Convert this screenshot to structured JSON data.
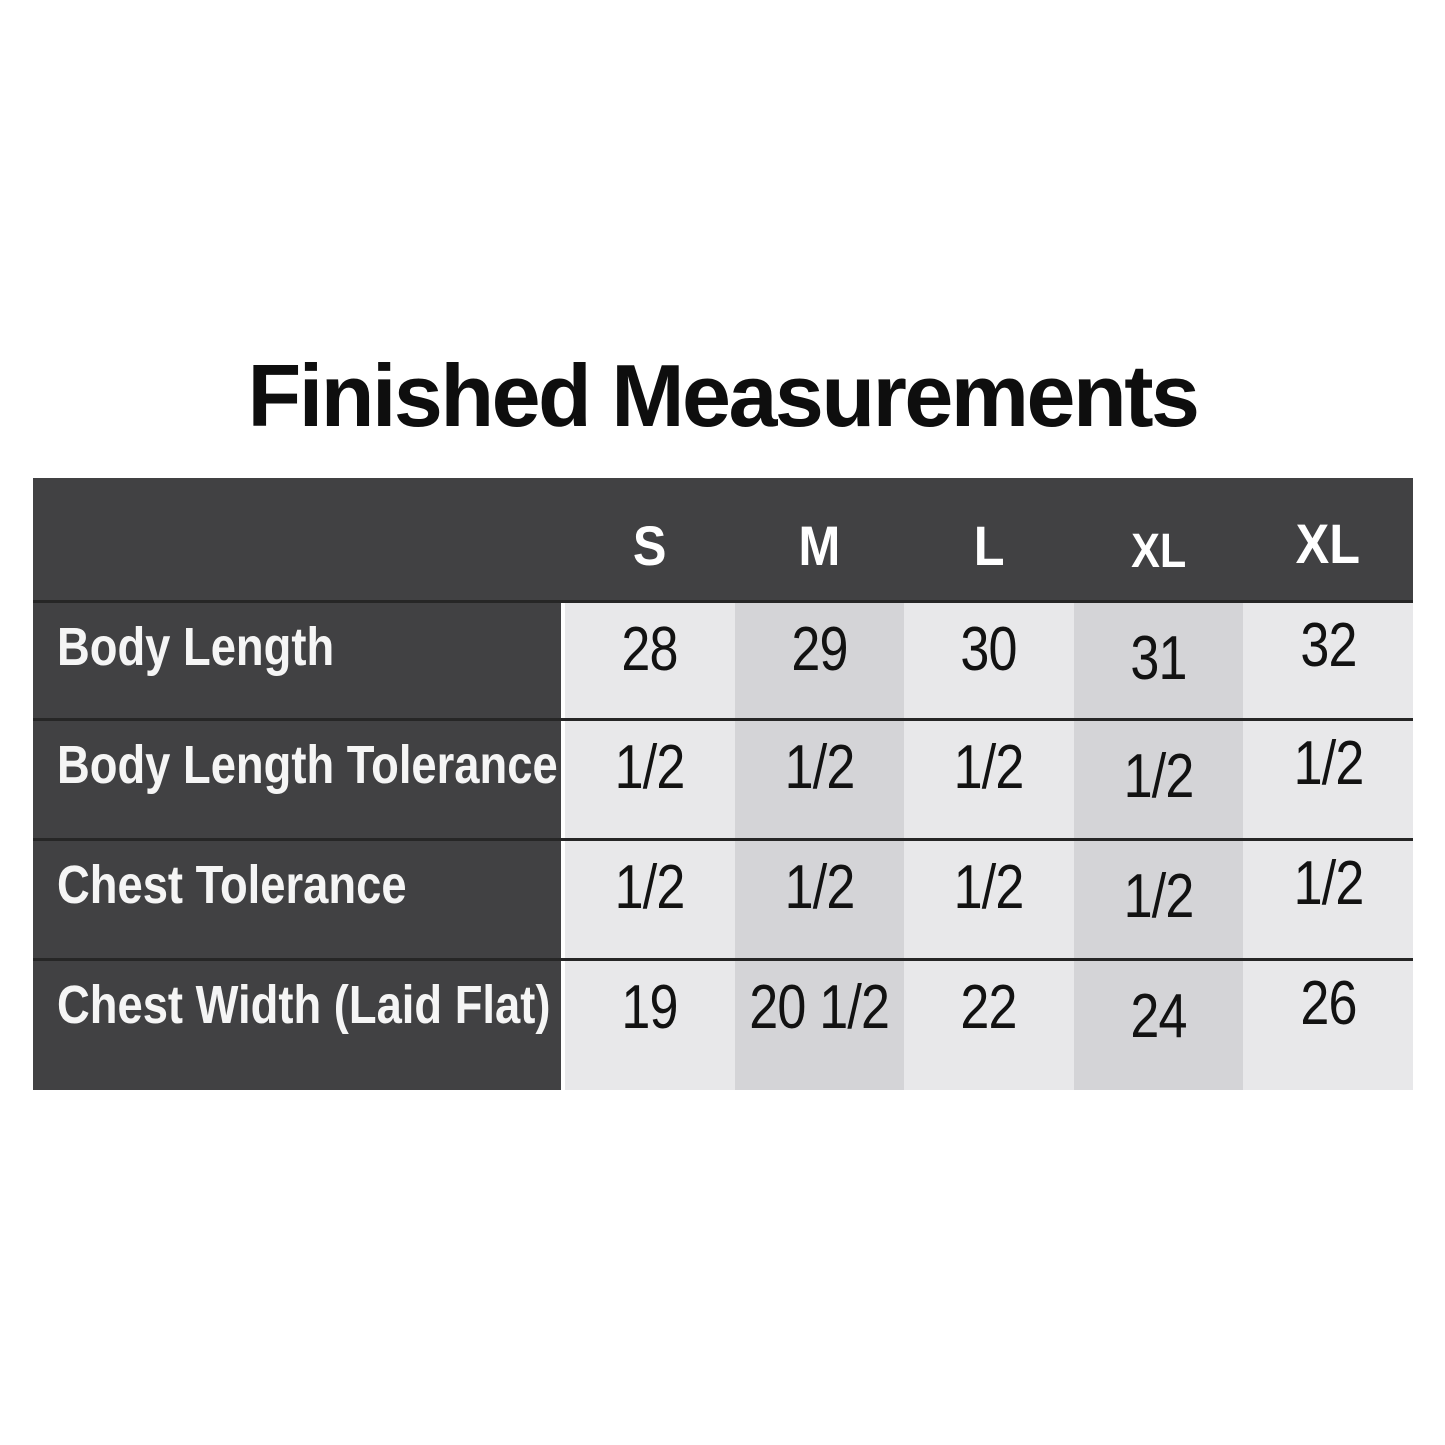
{
  "title": "Finished Measurements",
  "colors": {
    "header_bg": "#414143",
    "label_column_bg": "#414143",
    "column_light": "#e8e8ea",
    "column_medium": "#d4d4d7",
    "row_separator": "#262626",
    "header_text": "#ffffff",
    "cell_text": "#121212",
    "title_text": "#0e0e0e",
    "page_bg": "#ffffff"
  },
  "chart_data": {
    "type": "table",
    "title": "Finished Measurements",
    "columns": [
      "",
      "S",
      "M",
      "L",
      "XL",
      "XL"
    ],
    "rows": [
      [
        "Body Length",
        "28",
        "29",
        "30",
        "31",
        "32"
      ],
      [
        "Body Length Tolerance",
        "1/2",
        "1/2",
        "1/2",
        "1/2",
        "1/2"
      ],
      [
        "Chest Tolerance",
        "1/2",
        "1/2",
        "1/2",
        "1/2",
        "1/2"
      ],
      [
        "Chest Width (Laid Flat)",
        "19",
        "20 1/2",
        "22",
        "24",
        "26"
      ]
    ],
    "layout": {
      "label_column": "dark left column",
      "column_striping": "alternating light/medium gray",
      "grid": "horizontal dark separators only"
    }
  }
}
